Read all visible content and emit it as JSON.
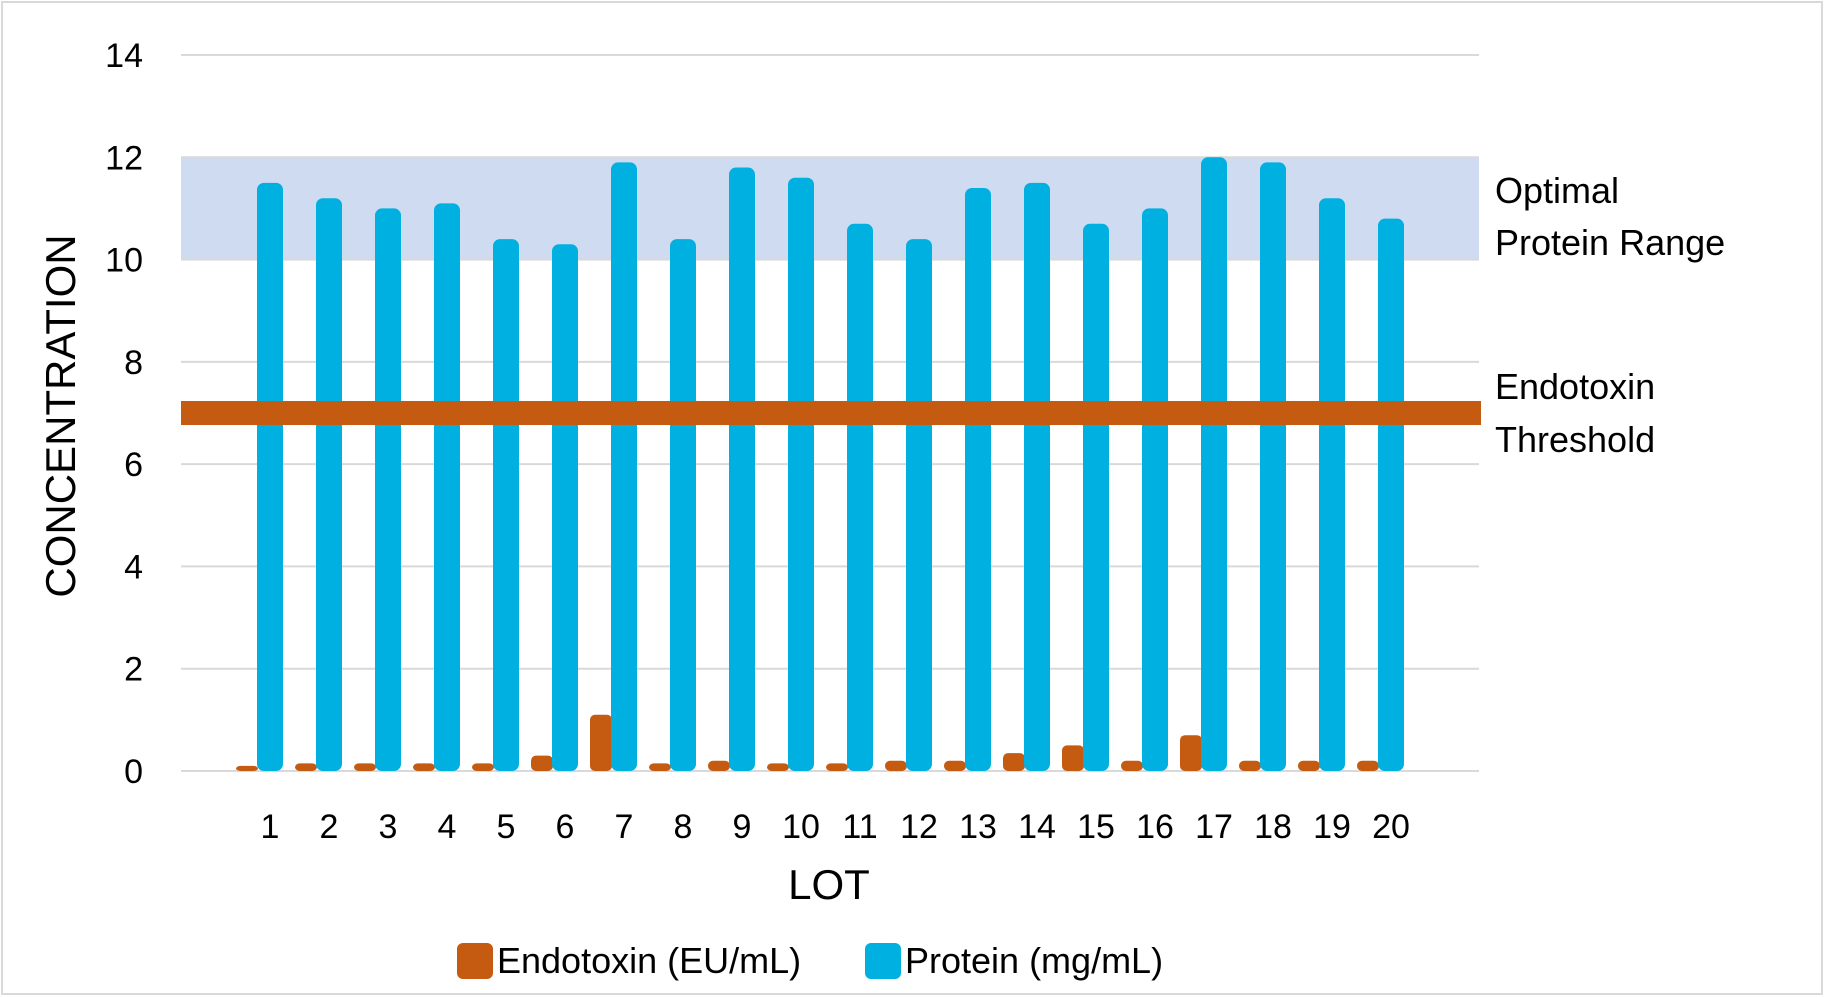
{
  "chart_data": {
    "type": "bar",
    "xlabel": "LOT",
    "ylabel": "CONCENTRATION",
    "ylim": [
      0,
      14
    ],
    "yticks": [
      "0",
      "2",
      "4",
      "6",
      "8",
      "10",
      "12",
      "14"
    ],
    "grid": true,
    "legend_position": "bottom",
    "categories": [
      "1",
      "2",
      "3",
      "4",
      "5",
      "6",
      "7",
      "8",
      "9",
      "10",
      "11",
      "12",
      "13",
      "14",
      "15",
      "16",
      "17",
      "18",
      "19",
      "20"
    ],
    "series": [
      {
        "name": "Endotoxin (EU/mL)",
        "color": "#c55a11",
        "values": [
          0.1,
          0.15,
          0.15,
          0.15,
          0.15,
          0.3,
          1.1,
          0.15,
          0.2,
          0.15,
          0.15,
          0.2,
          0.2,
          0.35,
          0.5,
          0.2,
          0.7,
          0.2,
          0.2,
          0.2
        ]
      },
      {
        "name": "Protein (mg/mL)",
        "color": "#00b0e0",
        "values": [
          11.5,
          11.2,
          11.0,
          11.1,
          10.4,
          10.3,
          11.9,
          10.4,
          11.8,
          11.6,
          10.7,
          10.4,
          11.4,
          11.5,
          10.7,
          11.0,
          12.0,
          11.9,
          11.2,
          10.8
        ]
      }
    ],
    "annotations": {
      "optimal_range": {
        "from": 10,
        "to": 12,
        "color": "#cfdbf0",
        "label_line1": "Optimal",
        "label_line2": "Protein Range"
      },
      "endotoxin_threshold": {
        "value": 7,
        "color": "#c55a11",
        "label_line1": "Endotoxin",
        "label_line2": "Threshold"
      }
    }
  }
}
